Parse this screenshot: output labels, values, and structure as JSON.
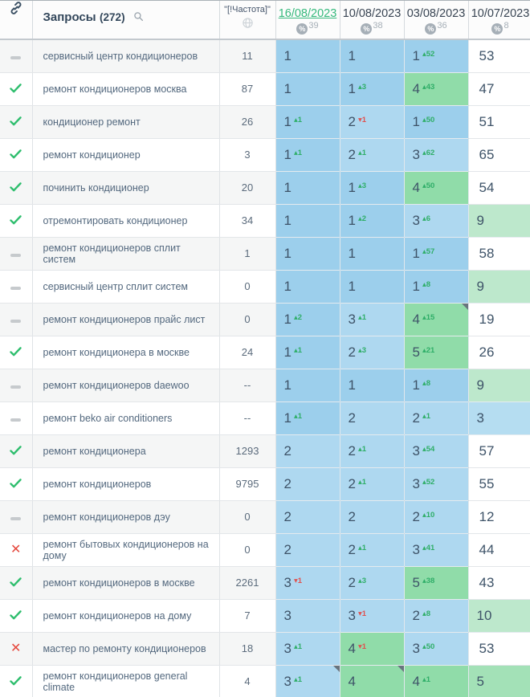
{
  "table": {
    "header": {
      "link_icon": "link-icon",
      "queries_label": "Запросы",
      "queries_count": "(272)",
      "search_icon": "search-icon",
      "frequency_label": "\"[!Частота]\"",
      "globe_icon": "globe-icon",
      "dates": [
        {
          "label": "16/08/2023",
          "percent": "39",
          "selected": true
        },
        {
          "label": "10/08/2023",
          "percent": "38",
          "selected": false
        },
        {
          "label": "03/08/2023",
          "percent": "36",
          "selected": false
        },
        {
          "label": "10/07/2023",
          "percent": "8",
          "selected": false
        }
      ]
    },
    "colors": {
      "pos1_blue": "#9CCFEC",
      "pos23_blue": "#AED8F0",
      "top10_green": "#90DCA9",
      "pale_blue": "#B5DDF1",
      "pale_green": "#BDE8CC",
      "pale_green_strong": "#A3E1B7",
      "delta_up": "#2FAE68",
      "delta_down": "#E0514F",
      "selected_date_green": "#35B97C",
      "check_green": "#2FBE6E",
      "cross_red": "#E5483D"
    },
    "rows": [
      {
        "status": "dash",
        "query": "сервисный центр кондиционеров",
        "freq": "11",
        "cells": [
          {
            "v": "1",
            "bg": "b1"
          },
          {
            "v": "1",
            "bg": "b1"
          },
          {
            "v": "1",
            "bg": "b1",
            "d": "+52"
          },
          {
            "v": "53",
            "bg": "w"
          }
        ]
      },
      {
        "status": "check",
        "query": "ремонт кондиционеров москва",
        "freq": "87",
        "cells": [
          {
            "v": "1",
            "bg": "b1"
          },
          {
            "v": "1",
            "bg": "b1",
            "d": "+3"
          },
          {
            "v": "4",
            "bg": "g",
            "d": "+43"
          },
          {
            "v": "47",
            "bg": "w"
          }
        ]
      },
      {
        "status": "check",
        "query": "кондиционер ремонт",
        "freq": "26",
        "cells": [
          {
            "v": "1",
            "bg": "b1",
            "d": "+1"
          },
          {
            "v": "2",
            "bg": "b2",
            "d": "-1"
          },
          {
            "v": "1",
            "bg": "b1",
            "d": "+50"
          },
          {
            "v": "51",
            "bg": "w"
          }
        ]
      },
      {
        "status": "check",
        "query": "ремонт кондиционер",
        "freq": "3",
        "cells": [
          {
            "v": "1",
            "bg": "b1",
            "d": "+1"
          },
          {
            "v": "2",
            "bg": "b2",
            "d": "+1"
          },
          {
            "v": "3",
            "bg": "b2",
            "d": "+62"
          },
          {
            "v": "65",
            "bg": "w"
          }
        ]
      },
      {
        "status": "check",
        "query": "починить кондиционер",
        "freq": "20",
        "cells": [
          {
            "v": "1",
            "bg": "b1"
          },
          {
            "v": "1",
            "bg": "b1",
            "d": "+3"
          },
          {
            "v": "4",
            "bg": "g",
            "d": "+50"
          },
          {
            "v": "54",
            "bg": "w"
          }
        ]
      },
      {
        "status": "check",
        "query": "отремонтировать кондиционер",
        "freq": "34",
        "cells": [
          {
            "v": "1",
            "bg": "b1"
          },
          {
            "v": "1",
            "bg": "b1",
            "d": "+2"
          },
          {
            "v": "3",
            "bg": "b2",
            "d": "+6"
          },
          {
            "v": "9",
            "bg": "lg"
          }
        ]
      },
      {
        "status": "dash",
        "query": "ремонт кондиционеров сплит систем",
        "freq": "1",
        "cells": [
          {
            "v": "1",
            "bg": "b1"
          },
          {
            "v": "1",
            "bg": "b1"
          },
          {
            "v": "1",
            "bg": "b1",
            "d": "+57"
          },
          {
            "v": "58",
            "bg": "w"
          }
        ]
      },
      {
        "status": "dash",
        "query": "сервисный центр сплит систем",
        "freq": "0",
        "cells": [
          {
            "v": "1",
            "bg": "b1"
          },
          {
            "v": "1",
            "bg": "b1"
          },
          {
            "v": "1",
            "bg": "b1",
            "d": "+8"
          },
          {
            "v": "9",
            "bg": "lg"
          }
        ]
      },
      {
        "status": "dash",
        "query": "ремонт кондиционеров прайс лист",
        "freq": "0",
        "cells": [
          {
            "v": "1",
            "bg": "b1",
            "d": "+2"
          },
          {
            "v": "3",
            "bg": "b2",
            "d": "+1"
          },
          {
            "v": "4",
            "bg": "g",
            "d": "+15",
            "note": true
          },
          {
            "v": "19",
            "bg": "w"
          }
        ]
      },
      {
        "status": "check",
        "query": "ремонт кондиционера в москве",
        "freq": "24",
        "cells": [
          {
            "v": "1",
            "bg": "b1",
            "d": "+1"
          },
          {
            "v": "2",
            "bg": "b2",
            "d": "+3"
          },
          {
            "v": "5",
            "bg": "g",
            "d": "+21"
          },
          {
            "v": "26",
            "bg": "w"
          }
        ]
      },
      {
        "status": "dash",
        "query": "ремонт кондиционеров daewoo",
        "freq": "--",
        "cells": [
          {
            "v": "1",
            "bg": "b1"
          },
          {
            "v": "1",
            "bg": "b1"
          },
          {
            "v": "1",
            "bg": "b1",
            "d": "+8"
          },
          {
            "v": "9",
            "bg": "lg"
          }
        ]
      },
      {
        "status": "dash",
        "query": "ремонт beko air conditioners",
        "freq": "--",
        "cells": [
          {
            "v": "1",
            "bg": "b1",
            "d": "+1"
          },
          {
            "v": "2",
            "bg": "b2"
          },
          {
            "v": "2",
            "bg": "b2",
            "d": "+1"
          },
          {
            "v": "3",
            "bg": "lb"
          }
        ]
      },
      {
        "status": "check",
        "query": "ремонт кондиционера",
        "freq": "1293",
        "cells": [
          {
            "v": "2",
            "bg": "b2"
          },
          {
            "v": "2",
            "bg": "b2",
            "d": "+1"
          },
          {
            "v": "3",
            "bg": "b2",
            "d": "+54"
          },
          {
            "v": "57",
            "bg": "w"
          }
        ]
      },
      {
        "status": "check",
        "query": "ремонт кондиционеров",
        "freq": "9795",
        "cells": [
          {
            "v": "2",
            "bg": "b2"
          },
          {
            "v": "2",
            "bg": "b2",
            "d": "+1"
          },
          {
            "v": "3",
            "bg": "b2",
            "d": "+52"
          },
          {
            "v": "55",
            "bg": "w"
          }
        ]
      },
      {
        "status": "dash",
        "query": "ремонт кондиционеров дэу",
        "freq": "0",
        "cells": [
          {
            "v": "2",
            "bg": "b2"
          },
          {
            "v": "2",
            "bg": "b2"
          },
          {
            "v": "2",
            "bg": "b2",
            "d": "+10"
          },
          {
            "v": "12",
            "bg": "w"
          }
        ]
      },
      {
        "status": "cross",
        "query": "ремонт бытовых кондиционеров на дому",
        "freq": "0",
        "cells": [
          {
            "v": "2",
            "bg": "b2"
          },
          {
            "v": "2",
            "bg": "b2",
            "d": "+1"
          },
          {
            "v": "3",
            "bg": "b2",
            "d": "+41"
          },
          {
            "v": "44",
            "bg": "w"
          }
        ]
      },
      {
        "status": "check",
        "query": "ремонт кондиционеров в москве",
        "freq": "2261",
        "cells": [
          {
            "v": "3",
            "bg": "b2",
            "d": "-1"
          },
          {
            "v": "2",
            "bg": "b2",
            "d": "+3"
          },
          {
            "v": "5",
            "bg": "g",
            "d": "+38"
          },
          {
            "v": "43",
            "bg": "w"
          }
        ]
      },
      {
        "status": "check",
        "query": "ремонт кондиционеров на дому",
        "freq": "7",
        "cells": [
          {
            "v": "3",
            "bg": "b2"
          },
          {
            "v": "3",
            "bg": "b2",
            "d": "-1"
          },
          {
            "v": "2",
            "bg": "b2",
            "d": "+8"
          },
          {
            "v": "10",
            "bg": "lg"
          }
        ]
      },
      {
        "status": "cross",
        "query": "мастер по ремонту кондиционеров",
        "freq": "18",
        "cells": [
          {
            "v": "3",
            "bg": "b2",
            "d": "+1"
          },
          {
            "v": "4",
            "bg": "g",
            "d": "-1"
          },
          {
            "v": "3",
            "bg": "b2",
            "d": "+50"
          },
          {
            "v": "53",
            "bg": "w"
          }
        ]
      },
      {
        "status": "check",
        "query": "ремонт кондиционеров general climate",
        "freq": "4",
        "cells": [
          {
            "v": "3",
            "bg": "b2",
            "d": "+1",
            "note": true
          },
          {
            "v": "4",
            "bg": "g",
            "note": true
          },
          {
            "v": "4",
            "bg": "g",
            "d": "+1"
          },
          {
            "v": "5",
            "bg": "lg5"
          }
        ]
      }
    ]
  }
}
